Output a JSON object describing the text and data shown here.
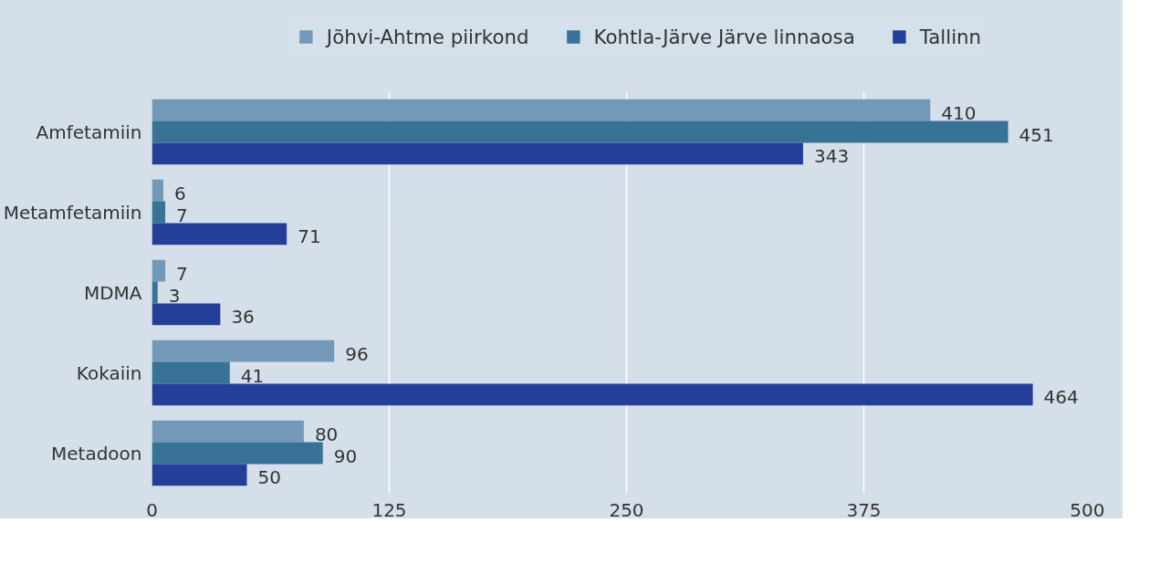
{
  "chart_data": {
    "type": "bar",
    "orientation": "horizontal",
    "categories": [
      "Amfetamiin",
      "Metamfetamiin",
      "MDMA",
      "Kokaiin",
      "Metadoon"
    ],
    "series": [
      {
        "name": "Jõhvi-Ahtme piirkond",
        "color": "#7398b8",
        "values": [
          410,
          6,
          7,
          96,
          80
        ]
      },
      {
        "name": "Kohtla-Järve Järve linnaosa",
        "color": "#387397",
        "values": [
          451,
          7,
          3,
          41,
          90
        ]
      },
      {
        "name": "Tallinn",
        "color": "#233f9a",
        "values": [
          343,
          71,
          36,
          464,
          50
        ]
      }
    ],
    "xlim": [
      0,
      500
    ],
    "xticks": [
      0,
      125,
      250,
      375,
      500
    ],
    "grid": "x",
    "legend": "top",
    "data_labels": true
  }
}
